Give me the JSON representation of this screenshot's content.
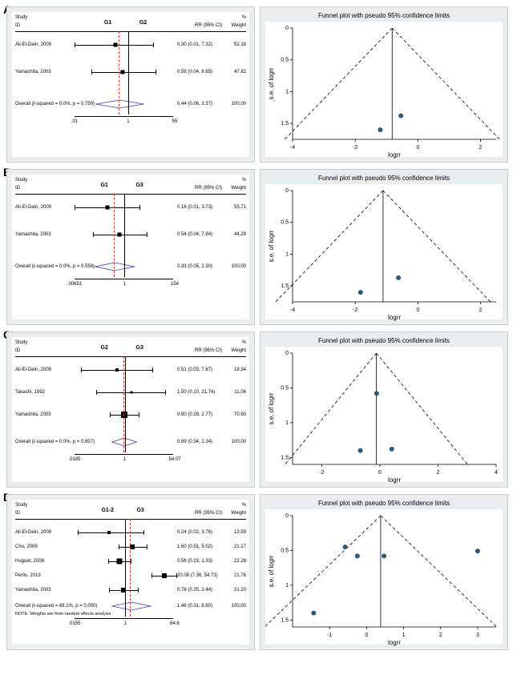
{
  "panels": [
    {
      "label": "A",
      "forest": {
        "headers": {
          "study": "Study",
          "id": "ID",
          "g1": "G1",
          "g2": "G2",
          "rr": "RR (95% CI)",
          "weight": "Weight",
          "pct": "%"
        },
        "plot_range_log": [
          -4.6,
          4.0
        ],
        "vline_null": 0,
        "vline_pooled": -0.82,
        "axis_ticks": [
          {
            "pos": -4.6,
            "label": ".01"
          },
          {
            "pos": 0,
            "label": "1"
          },
          {
            "pos": 4.0,
            "label": "55"
          }
        ],
        "rows": [
          {
            "label": "Ali-El-Dein, 2009",
            "est_log": -1.2,
            "lo_log": -4.6,
            "hi_log": 1.99,
            "box": 5,
            "rr": "0.30 (0.01, 7.32)",
            "weight": "52.18"
          },
          {
            "label": "Yamashita, 2003",
            "est_log": -0.54,
            "lo_log": -3.22,
            "hi_log": 2.18,
            "box": 5,
            "rr": "0.58 (0.04, 8.85)",
            "weight": "47.82"
          }
        ],
        "overall": {
          "label": "Overall  (I-squared = 0.0%, p = 0.759)",
          "est_log": -0.82,
          "lo_log": -2.81,
          "hi_log": 1.22,
          "rr": "0.44 (0.06, 3.37)",
          "weight": "100.00"
        }
      },
      "funnel": {
        "title": "Funnel plot with pseudo 95% confidence limits",
        "xlabel": "logrr",
        "ylabel": "s.e. of logrr",
        "xlim": [
          -4,
          2.5
        ],
        "ylim": [
          0,
          1.75
        ],
        "xticks": [
          -4,
          -2,
          0,
          2
        ],
        "yticks": [
          0,
          0.5,
          1,
          1.5
        ],
        "apex_x": -0.82,
        "points": [
          {
            "x": -1.2,
            "y": 1.6
          },
          {
            "x": -0.54,
            "y": 1.38
          }
        ],
        "point_color": "#2a5a7a",
        "bg": "#e8eef0",
        "plot_bg": "#ffffff",
        "line_color": "#000"
      }
    },
    {
      "label": "B",
      "forest": {
        "headers": {
          "study": "Study",
          "id": "ID",
          "g1": "G1",
          "g2": "G3",
          "rr": "RR (95% CI)",
          "weight": "Weight",
          "pct": "%"
        },
        "plot_range_log": [
          -5.03,
          5.04
        ],
        "vline_null": 0,
        "vline_pooled": -1.11,
        "axis_ticks": [
          {
            "pos": -5.03,
            "label": ".00651"
          },
          {
            "pos": 0,
            "label": "1"
          },
          {
            "pos": 5.04,
            "label": "154"
          }
        ],
        "rows": [
          {
            "label": "Ali-El-Dein, 2009",
            "est_log": -1.83,
            "lo_log": -5.03,
            "hi_log": 1.32,
            "box": 5,
            "rr": "0.16 (0.01, 3.73)",
            "weight": "55.71"
          },
          {
            "label": "Yamashita, 2003",
            "est_log": -0.62,
            "lo_log": -3.22,
            "hi_log": 2.06,
            "box": 5,
            "rr": "0.54 (0.04, 7.84)",
            "weight": "44.29"
          }
        ],
        "overall": {
          "label": "Overall  (I-squared = 0.0%, p = 0.558)",
          "est_log": -1.11,
          "lo_log": -3.0,
          "hi_log": 0.83,
          "rr": "0.33 (0.05, 2.30)",
          "weight": "100.00"
        }
      },
      "funnel": {
        "title": "Funnel plot with pseudo 95% confidence limits",
        "xlabel": "logrr",
        "ylabel": "s.e. of logrr",
        "xlim": [
          -4,
          2.5
        ],
        "ylim": [
          0,
          1.75
        ],
        "xticks": [
          -4,
          -2,
          0,
          2
        ],
        "yticks": [
          0,
          0.5,
          1,
          1.5
        ],
        "apex_x": -1.11,
        "points": [
          {
            "x": -1.83,
            "y": 1.6
          },
          {
            "x": -0.62,
            "y": 1.37
          }
        ],
        "point_color": "#2a5a7a",
        "bg": "#e8eef0",
        "plot_bg": "#ffffff",
        "line_color": "#000"
      }
    },
    {
      "label": "C",
      "forest": {
        "headers": {
          "study": "Study",
          "id": "ID",
          "g1": "G2",
          "g2": "G3",
          "rr": "RR (95% CI)",
          "weight": "Weight",
          "pct": "%"
        },
        "plot_range_log": [
          -4.0,
          4.0
        ],
        "vline_null": 0,
        "vline_pooled": -0.12,
        "axis_ticks": [
          {
            "pos": -4.0,
            "label": ".0185"
          },
          {
            "pos": 0,
            "label": "1"
          },
          {
            "pos": 4.0,
            "label": "54.07"
          }
        ],
        "rows": [
          {
            "label": "Ali-El-Dein, 2009",
            "est_log": -0.67,
            "lo_log": -3.51,
            "hi_log": 2.06,
            "box": 4,
            "rr": "0.51 (0.03, 7.87)",
            "weight": "18.34"
          },
          {
            "label": "Takashi, 1992",
            "est_log": 0.41,
            "lo_log": -2.3,
            "hi_log": 3.08,
            "box": 3,
            "rr": "1.50 (0.10, 21.74)",
            "weight": "11.06"
          },
          {
            "label": "Yamashita, 2003",
            "est_log": -0.11,
            "lo_log": -1.24,
            "hi_log": 1.02,
            "box": 8,
            "rr": "0.90 (0.29, 2.77)",
            "weight": "70.60"
          }
        ],
        "overall": {
          "label": "Overall  (I-squared = 0.0%, p = 0.857)",
          "est_log": -0.12,
          "lo_log": -1.08,
          "hi_log": 0.85,
          "rr": "0.89 (0.34, 2.34)",
          "weight": "100.00"
        }
      },
      "funnel": {
        "title": "Funnel plot with pseudo 95% confidence limits",
        "xlabel": "logrr",
        "ylabel": "s.e. of logrr",
        "xlim": [
          -3,
          4
        ],
        "ylim": [
          0,
          1.6
        ],
        "xticks": [
          -2,
          0,
          2,
          4
        ],
        "yticks": [
          0,
          0.5,
          1,
          1.5
        ],
        "apex_x": -0.12,
        "points": [
          {
            "x": -0.67,
            "y": 1.4
          },
          {
            "x": 0.41,
            "y": 1.38
          },
          {
            "x": -0.11,
            "y": 0.58
          }
        ],
        "point_color": "#2a5a7a",
        "bg": "#e8eef0",
        "plot_bg": "#ffffff",
        "line_color": "#000"
      }
    },
    {
      "label": "D",
      "forest": {
        "headers": {
          "study": "Study",
          "id": "ID",
          "g1": "G1-2",
          "g2": "G3",
          "rr": "RR (95% CI)",
          "weight": "Weight",
          "pct": "%"
        },
        "plot_range_log": [
          -4.17,
          4.04
        ],
        "vline_null": 0,
        "vline_pooled": 0.38,
        "axis_ticks": [
          {
            "pos": -4.17,
            "label": ".0155"
          },
          {
            "pos": 0,
            "label": "1"
          },
          {
            "pos": 4.04,
            "label": "64.6"
          }
        ],
        "rows": [
          {
            "label": "Ali-El-Dein, 2009",
            "est_log": -1.43,
            "lo_log": -3.91,
            "hi_log": 1.32,
            "box": 4,
            "rr": "0.24 (0.02, 3.76)",
            "weight": "13.59"
          },
          {
            "label": "Cho, 2009",
            "est_log": 0.47,
            "lo_log": -0.67,
            "hi_log": 1.61,
            "box": 6,
            "rr": "1.60 (0.51, 5.02)",
            "weight": "21.17"
          },
          {
            "label": "Huguet, 2008",
            "est_log": -0.58,
            "lo_log": -1.47,
            "hi_log": 0.29,
            "box": 7,
            "rr": "0.56 (0.23, 1.33)",
            "weight": "22.28"
          },
          {
            "label": "Perlis, 2013",
            "est_log": 3.0,
            "lo_log": 2.0,
            "hi_log": 4.0,
            "box": 6,
            "rr": "20.08 (7.36, 54.73)",
            "weight": "21.76"
          },
          {
            "label": "Yamashita, 2003",
            "est_log": -0.25,
            "lo_log": -1.39,
            "hi_log": 0.89,
            "box": 6,
            "rr": "0.78 (0.25, 2.44)",
            "weight": "21.20"
          }
        ],
        "overall": {
          "label": "Overall  (I-squared = 88.1%, p = 0.000)",
          "est_log": 0.38,
          "lo_log": -1.17,
          "hi_log": 1.92,
          "rr": "1.46 (0.31, 6.80)",
          "weight": "100.00"
        },
        "note": "NOTE: Weights are from random effects analysis"
      },
      "funnel": {
        "title": "Funnel plot with pseudo 95% confidence limits",
        "xlabel": "logrr",
        "ylabel": "s.e. of logrr",
        "xlim": [
          -2,
          3.5
        ],
        "ylim": [
          0,
          1.6
        ],
        "xticks": [
          -1,
          0,
          1,
          2,
          3
        ],
        "yticks": [
          0,
          0.5,
          1,
          1.5
        ],
        "apex_x": 0.38,
        "points": [
          {
            "x": -1.43,
            "y": 1.4
          },
          {
            "x": 0.47,
            "y": 0.58
          },
          {
            "x": -0.58,
            "y": 0.45
          },
          {
            "x": 3.0,
            "y": 0.51
          },
          {
            "x": -0.25,
            "y": 0.58
          }
        ],
        "point_color": "#2a5a7a",
        "bg": "#e8eef0",
        "plot_bg": "#ffffff",
        "line_color": "#000"
      }
    }
  ],
  "colors": {
    "plot_bg": "#e8eef0",
    "inner_bg": "#ffffff",
    "line": "#000000",
    "diamond": "#4040a0",
    "vline_pooled": "#cc3333",
    "point": "#2a5a7a"
  }
}
